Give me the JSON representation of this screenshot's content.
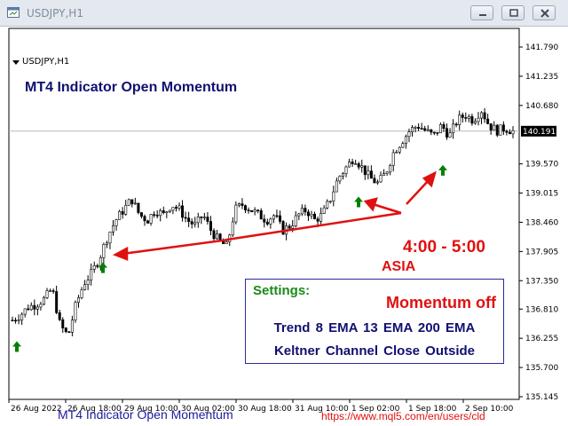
{
  "window": {
    "title": "USDJPY,H1",
    "icons": {
      "app": "chart-window-icon",
      "minimize": "minimize-icon",
      "maximize": "restore-icon",
      "close": "close-icon"
    }
  },
  "chart": {
    "symbol_label": "USDJPY,H1",
    "title": "MT4 Indicator  Open Momentum",
    "bottom_title": "MT4 Indicator  Open Momentum",
    "url": "https://www.mql5.com/en/users/cld",
    "current_price": "140.191",
    "price_labels": [
      "141.790",
      "141.235",
      "140.680",
      "140.191",
      "139.570",
      "139.015",
      "138.460",
      "137.905",
      "137.350",
      "136.810",
      "136.255",
      "135.700",
      "135.145"
    ],
    "time_labels": [
      "26 Aug 2022",
      "26 Aug 18:00",
      "29 Aug 10:00",
      "30 Aug 02:00",
      "30 Aug 18:00",
      "31 Aug 10:00",
      "1 Sep 02:00",
      "1 Sep 18:00",
      "2 Sep 10:00"
    ]
  },
  "annotations": {
    "session_time": "4:00 - 5:00",
    "session_name": "ASIA"
  },
  "settings": {
    "heading": "Settings:",
    "momentum": "Momentum off",
    "trend": "Trend  8 EMA  13 EMA  200 EMA",
    "keltner": "Keltner Channel  Close Outside"
  },
  "colors": {
    "background": "#ffffff",
    "candle": "#000000",
    "arrow_up": "#008000",
    "annotation": "#e01010",
    "title_text": "#101070"
  },
  "chart_data": {
    "type": "candlestick",
    "symbol": "USDJPY",
    "timeframe": "H1",
    "x_range": [
      "26 Aug 2022",
      "2 Sep 2022"
    ],
    "ylim": [
      135.145,
      141.79
    ],
    "path_close": [
      136.6,
      136.7,
      136.85,
      136.9,
      137.0,
      137.2,
      136.5,
      136.3,
      136.9,
      137.3,
      137.5,
      137.8,
      138.2,
      138.5,
      138.7,
      138.9,
      138.6,
      138.5,
      138.7,
      138.6,
      138.8,
      138.7,
      138.5,
      138.4,
      138.6,
      138.3,
      138.1,
      138.0,
      138.7,
      138.8,
      138.7,
      138.6,
      138.5,
      138.6,
      138.3,
      138.4,
      138.6,
      138.7,
      138.5,
      138.6,
      138.9,
      139.3,
      139.5,
      139.7,
      139.5,
      139.3,
      139.2,
      139.4,
      139.8,
      140.0,
      140.2,
      140.3,
      140.2,
      140.1,
      140.3,
      140.1,
      140.4,
      140.5,
      140.4,
      140.6,
      140.3,
      140.2,
      140.25,
      140.19
    ],
    "buy_signals": [
      {
        "time": "26 Aug 2022",
        "price": 136.3
      },
      {
        "time": "26 Aug 18:00",
        "price": 137.8
      },
      {
        "time": "1 Sep 02:00",
        "price": 139.05
      },
      {
        "time": "1 Sep 18:00",
        "price": 139.65
      }
    ]
  }
}
